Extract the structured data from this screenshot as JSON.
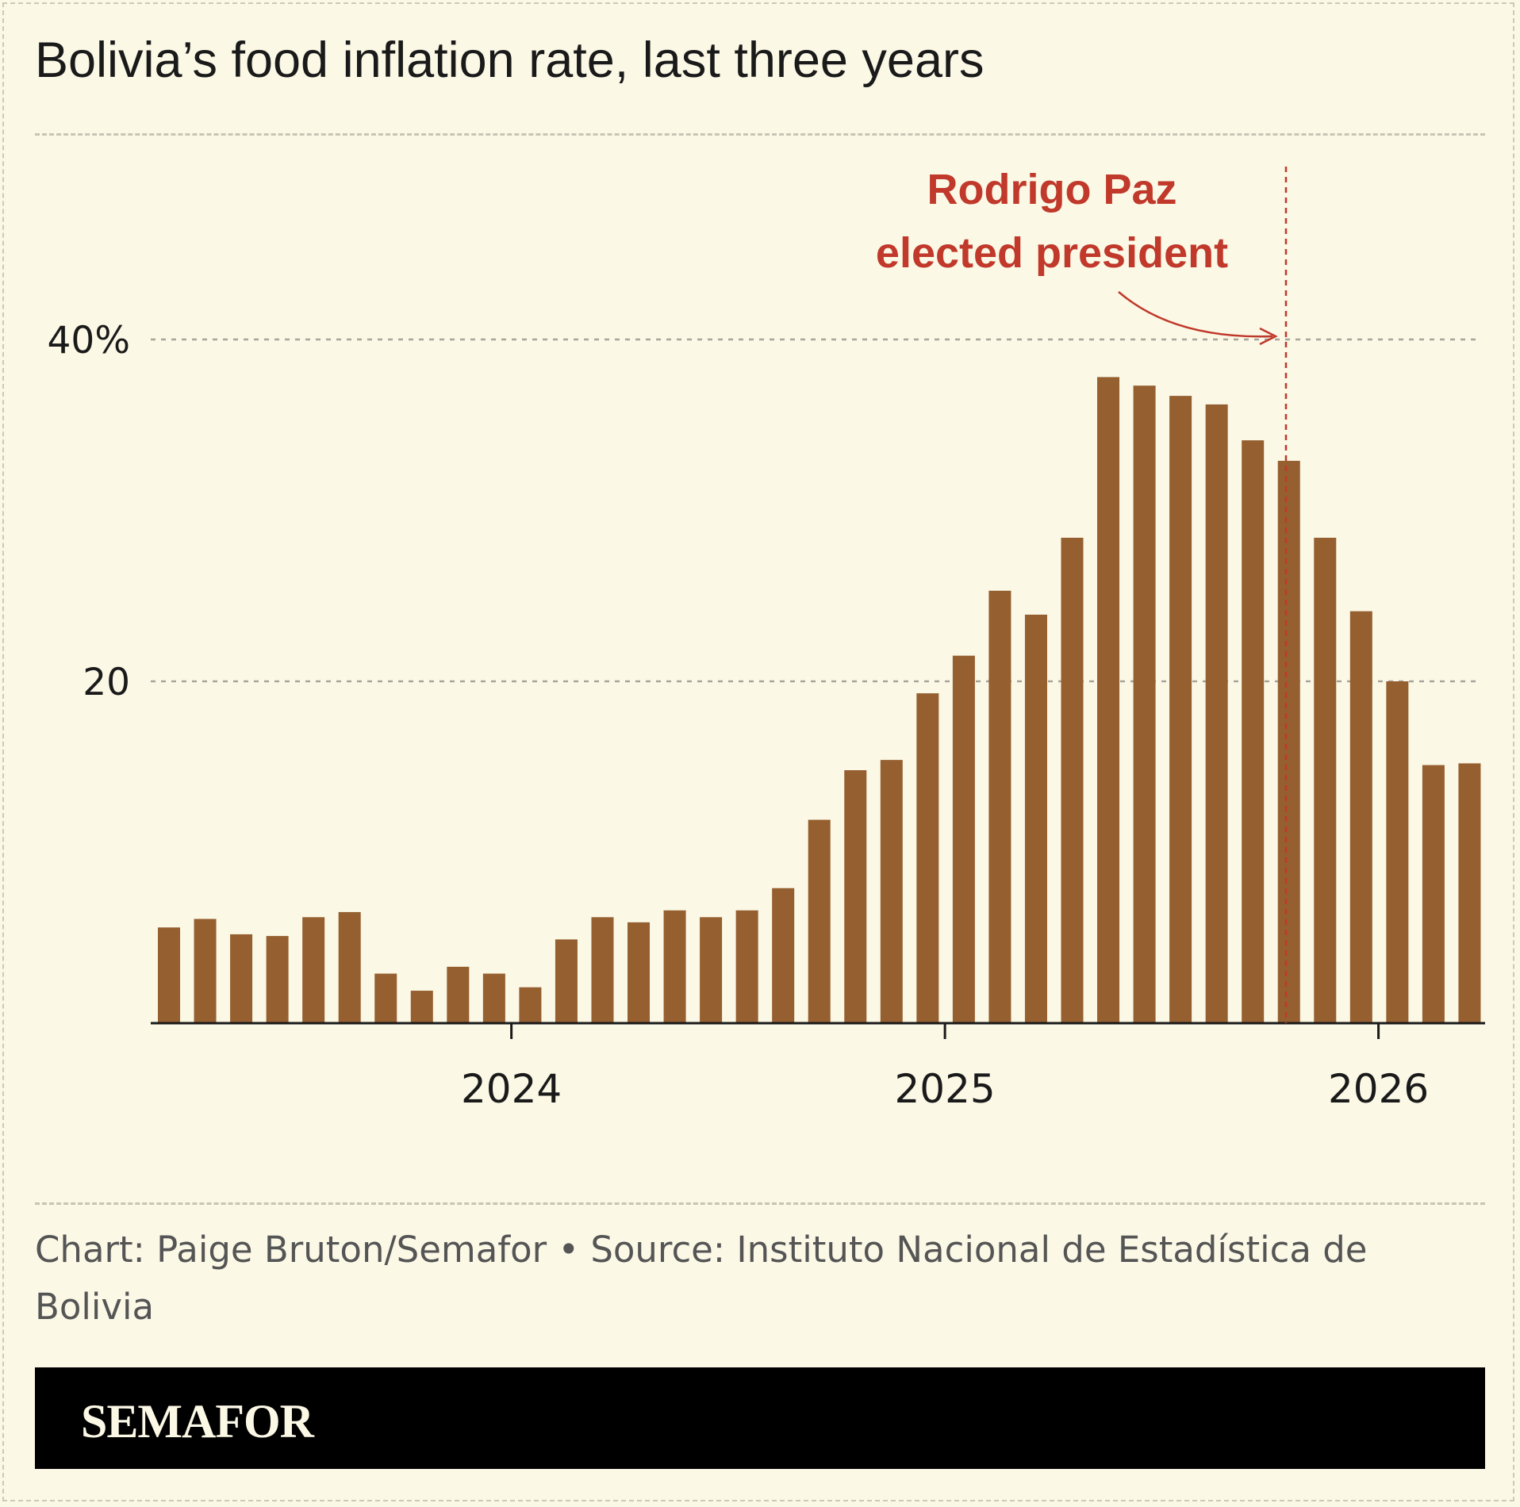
{
  "title": "Bolivia’s food inflation rate, last three years",
  "credit": "Chart: Paige Bruton/Semafor • Source: Instituto Nacional de Estadística de Bolivia",
  "brand": "SEMAFOR",
  "colors": {
    "background": "#fbf8e6",
    "bar": "#955f2f",
    "annotation": "#c0392b",
    "grid": "#a8a49a",
    "axis": "#1a1a1a",
    "footer": "#000000"
  },
  "chart_data": {
    "type": "bar",
    "ylim": [
      0,
      48
    ],
    "ytick_values": [
      20,
      40
    ],
    "ytick_labels": [
      "20",
      "40%"
    ],
    "grid": "dashed horizontal",
    "xtick_labels": [
      "2024",
      "2025",
      "2026"
    ],
    "values": [
      5.6,
      6.1,
      5.2,
      5.1,
      6.2,
      6.5,
      2.9,
      1.9,
      3.3,
      2.9,
      2.1,
      4.9,
      6.2,
      5.9,
      6.6,
      6.2,
      6.6,
      7.9,
      11.9,
      14.8,
      15.4,
      19.3,
      21.5,
      25.3,
      23.9,
      28.4,
      37.8,
      37.3,
      36.7,
      36.2,
      34.1,
      32.9,
      28.4,
      24.1,
      20.0,
      15.1,
      15.2
    ],
    "annotation": {
      "line1": "Rodrigo Paz",
      "line2": "elected president",
      "style": "dashed vertical line with arrow"
    }
  }
}
